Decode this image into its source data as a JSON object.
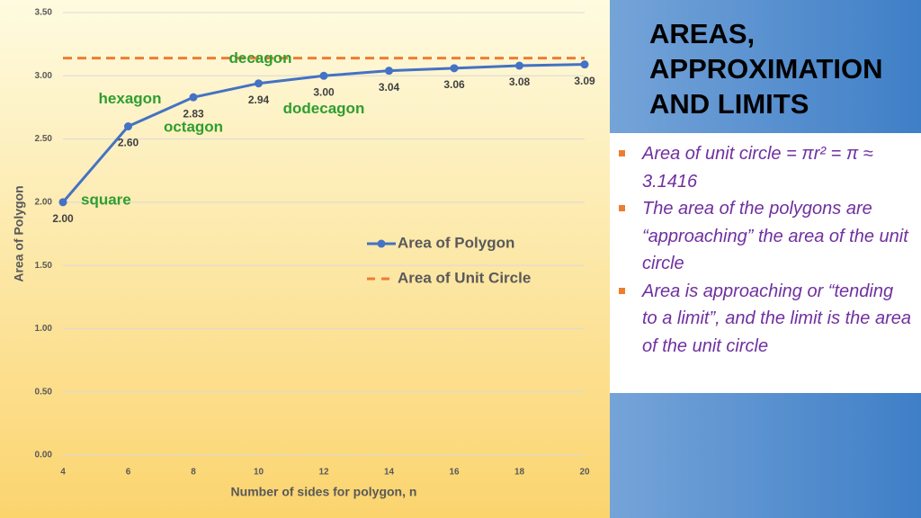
{
  "chart_data": {
    "type": "line",
    "x": [
      4,
      6,
      8,
      10,
      12,
      14,
      16,
      18,
      20
    ],
    "series": [
      {
        "name": "Area of Polygon",
        "color": "#4472c4",
        "values": [
          2.0,
          2.6,
          2.83,
          2.94,
          3.0,
          3.04,
          3.06,
          3.08,
          3.09
        ],
        "value_labels": [
          "2.00",
          "2.60",
          "2.83",
          "2.94",
          "3.00",
          "3.04",
          "3.06",
          "3.08",
          "3.09"
        ]
      },
      {
        "name": "Area of Unit Circle",
        "color": "#ed7d31",
        "dashed": true,
        "values": [
          3.14,
          3.14,
          3.14,
          3.14,
          3.14,
          3.14,
          3.14,
          3.14,
          3.14
        ]
      }
    ],
    "xlabel": "Number of sides for polygon, n",
    "ylabel": "Area of Polygon",
    "xlim": [
      4,
      20
    ],
    "xticks": [
      4,
      6,
      8,
      10,
      12,
      14,
      16,
      18,
      20
    ],
    "ylim": [
      0,
      3.5
    ],
    "yticks": [
      {
        "value": 0,
        "label": "0.00"
      },
      {
        "value": 0.5,
        "label": "0.50"
      },
      {
        "value": 1,
        "label": "1.00"
      },
      {
        "value": 1.5,
        "label": "1.50"
      },
      {
        "value": 2,
        "label": "2.00"
      },
      {
        "value": 2.5,
        "label": "2.50"
      },
      {
        "value": 3,
        "label": "3.00"
      },
      {
        "value": 3.5,
        "label": "3.50"
      }
    ],
    "grid": true,
    "annotations": [
      {
        "text": "square",
        "x": 4
      },
      {
        "text": "hexagon",
        "x": 6
      },
      {
        "text": "octagon",
        "x": 8
      },
      {
        "text": "decagon",
        "x": 10
      },
      {
        "text": "dodecagon",
        "x": 12
      }
    ]
  },
  "slide": {
    "title_lines": [
      "AREAS,",
      "APPROXIMATION",
      "AND LIMITS"
    ],
    "bullets": [
      "Area of unit circle = πr² = π ≈ 3.1416",
      "The area of the polygons are “approaching” the area of the unit circle",
      "Area is approaching or “tending to a limit”, and the limit is the area of the unit circle"
    ]
  }
}
